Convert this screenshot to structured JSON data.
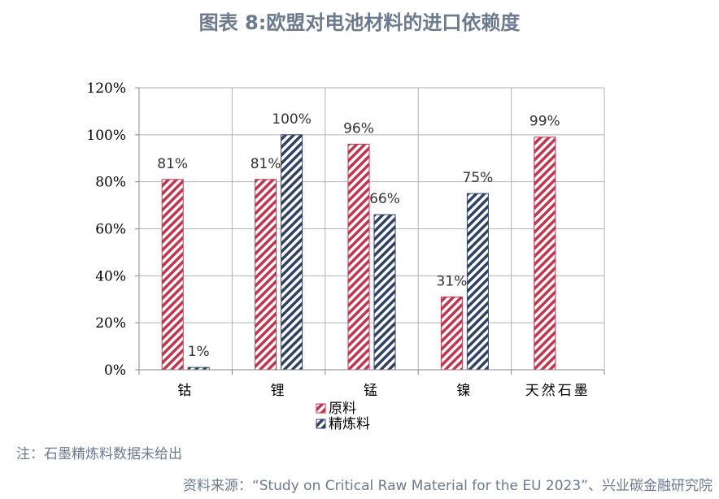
{
  "title": "图表 8:欧盟对电池材料的进口依赖度",
  "note": "注：石墨精炼料数据未给出",
  "source": "资料来源：“Study on Critical Raw Material for the EU 2023”、兴业碳金融研究院",
  "colors": {
    "raw": "#c8324b",
    "refined": "#2f4264",
    "grid": "#b3b3b3",
    "axis": "#888888"
  },
  "chart_data": {
    "type": "bar",
    "categories": [
      "钴",
      "锂",
      "锰",
      "镍",
      "天然石墨"
    ],
    "series": [
      {
        "name": "原料",
        "values": [
          81,
          81,
          96,
          31,
          99
        ]
      },
      {
        "name": "精炼料",
        "values": [
          1,
          100,
          66,
          75,
          null
        ]
      }
    ],
    "data_labels": [
      [
        "81%",
        "81%",
        "96%",
        "31%",
        "99%"
      ],
      [
        "1%",
        "100%",
        "66%",
        "75%",
        ""
      ]
    ],
    "y_ticks": [
      "0%",
      "20%",
      "40%",
      "60%",
      "80%",
      "100%",
      "120%"
    ],
    "ylim": [
      0,
      120
    ],
    "grid": true,
    "legend_position": "bottom"
  }
}
